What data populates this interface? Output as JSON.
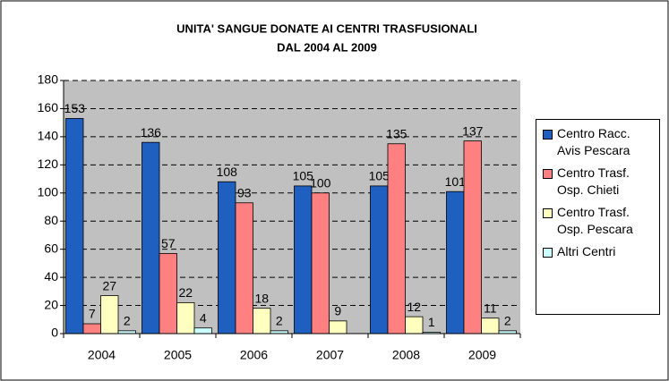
{
  "chart_data": {
    "type": "bar",
    "title": [
      "UNITA' SANGUE DONATE AI CENTRI TRASFUSIONALI",
      "DAL 2004 AL 2009"
    ],
    "categories": [
      "2004",
      "2005",
      "2006",
      "2007",
      "2008",
      "2009"
    ],
    "series": [
      {
        "name": "Centro Racc. Avis Pescara",
        "color": "#1f5fc0",
        "values": [
          153,
          136,
          108,
          105,
          105,
          101
        ]
      },
      {
        "name": "Centro Trasf. Osp. Chieti",
        "color": "#ff8080",
        "values": [
          7,
          57,
          93,
          100,
          135,
          137
        ]
      },
      {
        "name": "Centro Trasf. Osp. Pescara",
        "color": "#ffffc0",
        "values": [
          27,
          22,
          18,
          9,
          12,
          11
        ]
      },
      {
        "name": "Altri Centri",
        "color": "#ccffff",
        "values": [
          2,
          4,
          2,
          null,
          1,
          2
        ]
      }
    ],
    "ylim": [
      0,
      180
    ],
    "yticks": [
      0,
      20,
      40,
      60,
      80,
      100,
      120,
      140,
      160,
      180
    ],
    "grid": true
  }
}
